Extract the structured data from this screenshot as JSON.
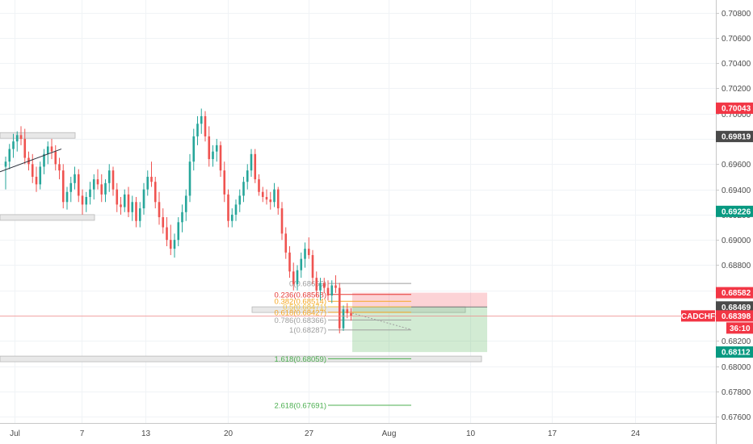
{
  "chart_data": {
    "type": "candlestick",
    "symbol": "CADCHF",
    "x_axis": {
      "tick_labels": [
        "Jul",
        "7",
        "13",
        "20",
        "27",
        "Aug",
        "10",
        "17",
        "24"
      ]
    },
    "y_axis": {
      "ylim": [
        0.6755,
        0.709
      ],
      "tick_labels": [
        "0.70800",
        "0.70600",
        "0.70400",
        "0.70200",
        "0.70000",
        "0.69800",
        "0.69600",
        "0.69400",
        "0.69200",
        "0.69000",
        "0.68800",
        "0.68600",
        "0.68400",
        "0.68200",
        "0.68000",
        "0.67800",
        "0.67600"
      ]
    },
    "grid": true,
    "price_tags": [
      {
        "label": "0.70043",
        "value": 0.70043,
        "color": "#f23645"
      },
      {
        "label": "0.69819",
        "value": 0.69819,
        "color": "#4a4a4a"
      },
      {
        "label": "0.69226",
        "value": 0.69226,
        "color": "#089981"
      },
      {
        "label": "0.68582",
        "value": 0.68582,
        "color": "#f23645"
      },
      {
        "label": "0.68469",
        "value": 0.68469,
        "color": "#4a4a4a"
      },
      {
        "label": "0.68398",
        "value": 0.68398,
        "color": "#f23645"
      },
      {
        "label": "0.68112",
        "value": 0.68112,
        "color": "#089981"
      }
    ],
    "countdown": "36:10",
    "fibonacci": [
      {
        "label": "0(0.68655)",
        "value": 0.68655,
        "color": "#9e9e9e"
      },
      {
        "label": "0.236(0.68568)",
        "value": 0.68568,
        "color": "#e53935"
      },
      {
        "label": "0.382(0.68514)",
        "value": 0.68514,
        "color": "#f5a623"
      },
      {
        "label": "0.5(0.68471)",
        "value": 0.68471,
        "color": "#f5c242"
      },
      {
        "label": "0.618(0.68427)",
        "value": 0.68427,
        "color": "#f5a623"
      },
      {
        "label": "0.786(0.68366)",
        "value": 0.68366,
        "color": "#9e9e9e"
      },
      {
        "label": "1(0.68287)",
        "value": 0.68287,
        "color": "#9e9e9e"
      },
      {
        "label": "1.618(0.68059)",
        "value": 0.68059,
        "color": "#4caf50"
      },
      {
        "label": "2.618(0.67691)",
        "value": 0.67691,
        "color": "#4caf50"
      }
    ],
    "short_position": {
      "entry": 0.68469,
      "stop": 0.68582,
      "target": 0.68112
    },
    "zones": [
      {
        "price_high": 0.6985,
        "price_low": 0.6983
      },
      {
        "price_high": 0.692,
        "price_low": 0.6917
      },
      {
        "price_high": 0.6847,
        "price_low": 0.6845
      },
      {
        "price_high": 0.6808,
        "price_low": 0.6806
      }
    ],
    "current_price": 0.68398,
    "ohlc": [
      {
        "o": 0.6958,
        "h": 0.6966,
        "l": 0.694,
        "c": 0.6962
      },
      {
        "o": 0.6962,
        "h": 0.6976,
        "l": 0.6956,
        "c": 0.6972
      },
      {
        "o": 0.6972,
        "h": 0.6984,
        "l": 0.6965,
        "c": 0.6978
      },
      {
        "o": 0.6978,
        "h": 0.6986,
        "l": 0.697,
        "c": 0.6983
      },
      {
        "o": 0.6983,
        "h": 0.699,
        "l": 0.6975,
        "c": 0.698
      },
      {
        "o": 0.698,
        "h": 0.6988,
        "l": 0.696,
        "c": 0.6965
      },
      {
        "o": 0.6965,
        "h": 0.697,
        "l": 0.6955,
        "c": 0.696
      },
      {
        "o": 0.696,
        "h": 0.6968,
        "l": 0.6945,
        "c": 0.695
      },
      {
        "o": 0.695,
        "h": 0.6958,
        "l": 0.6938,
        "c": 0.6944
      },
      {
        "o": 0.6944,
        "h": 0.6962,
        "l": 0.694,
        "c": 0.6958
      },
      {
        "o": 0.6958,
        "h": 0.6972,
        "l": 0.6952,
        "c": 0.6968
      },
      {
        "o": 0.6968,
        "h": 0.6978,
        "l": 0.696,
        "c": 0.6974
      },
      {
        "o": 0.6974,
        "h": 0.698,
        "l": 0.6964,
        "c": 0.697
      },
      {
        "o": 0.697,
        "h": 0.6975,
        "l": 0.6955,
        "c": 0.696
      },
      {
        "o": 0.696,
        "h": 0.6965,
        "l": 0.6948,
        "c": 0.6955
      },
      {
        "o": 0.6955,
        "h": 0.696,
        "l": 0.6925,
        "c": 0.693
      },
      {
        "o": 0.693,
        "h": 0.6942,
        "l": 0.6924,
        "c": 0.6938
      },
      {
        "o": 0.6938,
        "h": 0.695,
        "l": 0.693,
        "c": 0.6945
      },
      {
        "o": 0.6945,
        "h": 0.6958,
        "l": 0.694,
        "c": 0.6952
      },
      {
        "o": 0.6952,
        "h": 0.6956,
        "l": 0.693,
        "c": 0.6935
      },
      {
        "o": 0.6935,
        "h": 0.694,
        "l": 0.692,
        "c": 0.6928
      },
      {
        "o": 0.6928,
        "h": 0.6938,
        "l": 0.6922,
        "c": 0.6934
      },
      {
        "o": 0.6934,
        "h": 0.6946,
        "l": 0.6928,
        "c": 0.694
      },
      {
        "o": 0.694,
        "h": 0.6952,
        "l": 0.6932,
        "c": 0.6948
      },
      {
        "o": 0.6948,
        "h": 0.6956,
        "l": 0.694,
        "c": 0.6944
      },
      {
        "o": 0.6944,
        "h": 0.6952,
        "l": 0.693,
        "c": 0.6936
      },
      {
        "o": 0.6936,
        "h": 0.6948,
        "l": 0.693,
        "c": 0.6945
      },
      {
        "o": 0.6945,
        "h": 0.696,
        "l": 0.6938,
        "c": 0.6955
      },
      {
        "o": 0.6955,
        "h": 0.6958,
        "l": 0.6935,
        "c": 0.694
      },
      {
        "o": 0.694,
        "h": 0.6945,
        "l": 0.6922,
        "c": 0.6928
      },
      {
        "o": 0.6928,
        "h": 0.6934,
        "l": 0.692,
        "c": 0.6926
      },
      {
        "o": 0.6926,
        "h": 0.694,
        "l": 0.6922,
        "c": 0.6936
      },
      {
        "o": 0.6936,
        "h": 0.6942,
        "l": 0.6918,
        "c": 0.6922
      },
      {
        "o": 0.6922,
        "h": 0.6935,
        "l": 0.6915,
        "c": 0.693
      },
      {
        "o": 0.693,
        "h": 0.6934,
        "l": 0.691,
        "c": 0.6915
      },
      {
        "o": 0.6915,
        "h": 0.693,
        "l": 0.691,
        "c": 0.6925
      },
      {
        "o": 0.6925,
        "h": 0.6945,
        "l": 0.692,
        "c": 0.694
      },
      {
        "o": 0.694,
        "h": 0.6955,
        "l": 0.6935,
        "c": 0.695
      },
      {
        "o": 0.695,
        "h": 0.6962,
        "l": 0.6942,
        "c": 0.6946
      },
      {
        "o": 0.6946,
        "h": 0.695,
        "l": 0.6925,
        "c": 0.693
      },
      {
        "o": 0.693,
        "h": 0.6938,
        "l": 0.6912,
        "c": 0.6918
      },
      {
        "o": 0.6918,
        "h": 0.6925,
        "l": 0.6905,
        "c": 0.691
      },
      {
        "o": 0.691,
        "h": 0.6918,
        "l": 0.6895,
        "c": 0.69
      },
      {
        "o": 0.69,
        "h": 0.6912,
        "l": 0.6888,
        "c": 0.6893
      },
      {
        "o": 0.6893,
        "h": 0.6905,
        "l": 0.6886,
        "c": 0.69
      },
      {
        "o": 0.69,
        "h": 0.6918,
        "l": 0.6895,
        "c": 0.6914
      },
      {
        "o": 0.6914,
        "h": 0.6928,
        "l": 0.6906,
        "c": 0.6922
      },
      {
        "o": 0.6922,
        "h": 0.694,
        "l": 0.6915,
        "c": 0.6935
      },
      {
        "o": 0.6935,
        "h": 0.6968,
        "l": 0.693,
        "c": 0.6962
      },
      {
        "o": 0.6962,
        "h": 0.6988,
        "l": 0.6955,
        "c": 0.6982
      },
      {
        "o": 0.6982,
        "h": 0.6998,
        "l": 0.6975,
        "c": 0.6992
      },
      {
        "o": 0.6992,
        "h": 0.7004,
        "l": 0.6984,
        "c": 0.6998
      },
      {
        "o": 0.6998,
        "h": 0.7002,
        "l": 0.6978,
        "c": 0.6982
      },
      {
        "o": 0.6982,
        "h": 0.699,
        "l": 0.6958,
        "c": 0.6964
      },
      {
        "o": 0.6964,
        "h": 0.6975,
        "l": 0.6958,
        "c": 0.697
      },
      {
        "o": 0.697,
        "h": 0.698,
        "l": 0.6962,
        "c": 0.6975
      },
      {
        "o": 0.6975,
        "h": 0.6978,
        "l": 0.695,
        "c": 0.6955
      },
      {
        "o": 0.6955,
        "h": 0.6962,
        "l": 0.693,
        "c": 0.6936
      },
      {
        "o": 0.6936,
        "h": 0.694,
        "l": 0.691,
        "c": 0.6915
      },
      {
        "o": 0.6915,
        "h": 0.6925,
        "l": 0.691,
        "c": 0.692
      },
      {
        "o": 0.692,
        "h": 0.6932,
        "l": 0.6915,
        "c": 0.6928
      },
      {
        "o": 0.6928,
        "h": 0.694,
        "l": 0.6922,
        "c": 0.6935
      },
      {
        "o": 0.6935,
        "h": 0.695,
        "l": 0.693,
        "c": 0.6946
      },
      {
        "o": 0.6946,
        "h": 0.696,
        "l": 0.694,
        "c": 0.6955
      },
      {
        "o": 0.6955,
        "h": 0.6972,
        "l": 0.695,
        "c": 0.6968
      },
      {
        "o": 0.6968,
        "h": 0.6972,
        "l": 0.6945,
        "c": 0.6948
      },
      {
        "o": 0.6948,
        "h": 0.6952,
        "l": 0.6935,
        "c": 0.6938
      },
      {
        "o": 0.6938,
        "h": 0.6942,
        "l": 0.693,
        "c": 0.6934
      },
      {
        "o": 0.6934,
        "h": 0.694,
        "l": 0.6928,
        "c": 0.6932
      },
      {
        "o": 0.6932,
        "h": 0.6938,
        "l": 0.6924,
        "c": 0.693
      },
      {
        "o": 0.693,
        "h": 0.6945,
        "l": 0.6926,
        "c": 0.694
      },
      {
        "o": 0.694,
        "h": 0.6942,
        "l": 0.692,
        "c": 0.6925
      },
      {
        "o": 0.6925,
        "h": 0.693,
        "l": 0.69,
        "c": 0.6905
      },
      {
        "o": 0.6905,
        "h": 0.691,
        "l": 0.6885,
        "c": 0.689
      },
      {
        "o": 0.689,
        "h": 0.6895,
        "l": 0.687,
        "c": 0.6875
      },
      {
        "o": 0.6875,
        "h": 0.6882,
        "l": 0.686,
        "c": 0.6865
      },
      {
        "o": 0.6865,
        "h": 0.688,
        "l": 0.686,
        "c": 0.6876
      },
      {
        "o": 0.6876,
        "h": 0.689,
        "l": 0.687,
        "c": 0.6885
      },
      {
        "o": 0.6885,
        "h": 0.6898,
        "l": 0.6878,
        "c": 0.6893
      },
      {
        "o": 0.6893,
        "h": 0.6902,
        "l": 0.6885,
        "c": 0.6888
      },
      {
        "o": 0.6888,
        "h": 0.6892,
        "l": 0.6865,
        "c": 0.687
      },
      {
        "o": 0.687,
        "h": 0.6875,
        "l": 0.6855,
        "c": 0.686
      },
      {
        "o": 0.686,
        "h": 0.687,
        "l": 0.6852,
        "c": 0.6866
      },
      {
        "o": 0.6866,
        "h": 0.687,
        "l": 0.6858,
        "c": 0.6862
      },
      {
        "o": 0.6862,
        "h": 0.6868,
        "l": 0.6852,
        "c": 0.6856
      },
      {
        "o": 0.6856,
        "h": 0.6868,
        "l": 0.685,
        "c": 0.6864
      },
      {
        "o": 0.6864,
        "h": 0.6872,
        "l": 0.6858,
        "c": 0.6862
      },
      {
        "o": 0.6862,
        "h": 0.6866,
        "l": 0.6826,
        "c": 0.683
      },
      {
        "o": 0.683,
        "h": 0.6848,
        "l": 0.6828,
        "c": 0.6845
      },
      {
        "o": 0.6845,
        "h": 0.685,
        "l": 0.6838,
        "c": 0.6842
      },
      {
        "o": 0.6842,
        "h": 0.6846,
        "l": 0.6836,
        "c": 0.684
      }
    ]
  }
}
